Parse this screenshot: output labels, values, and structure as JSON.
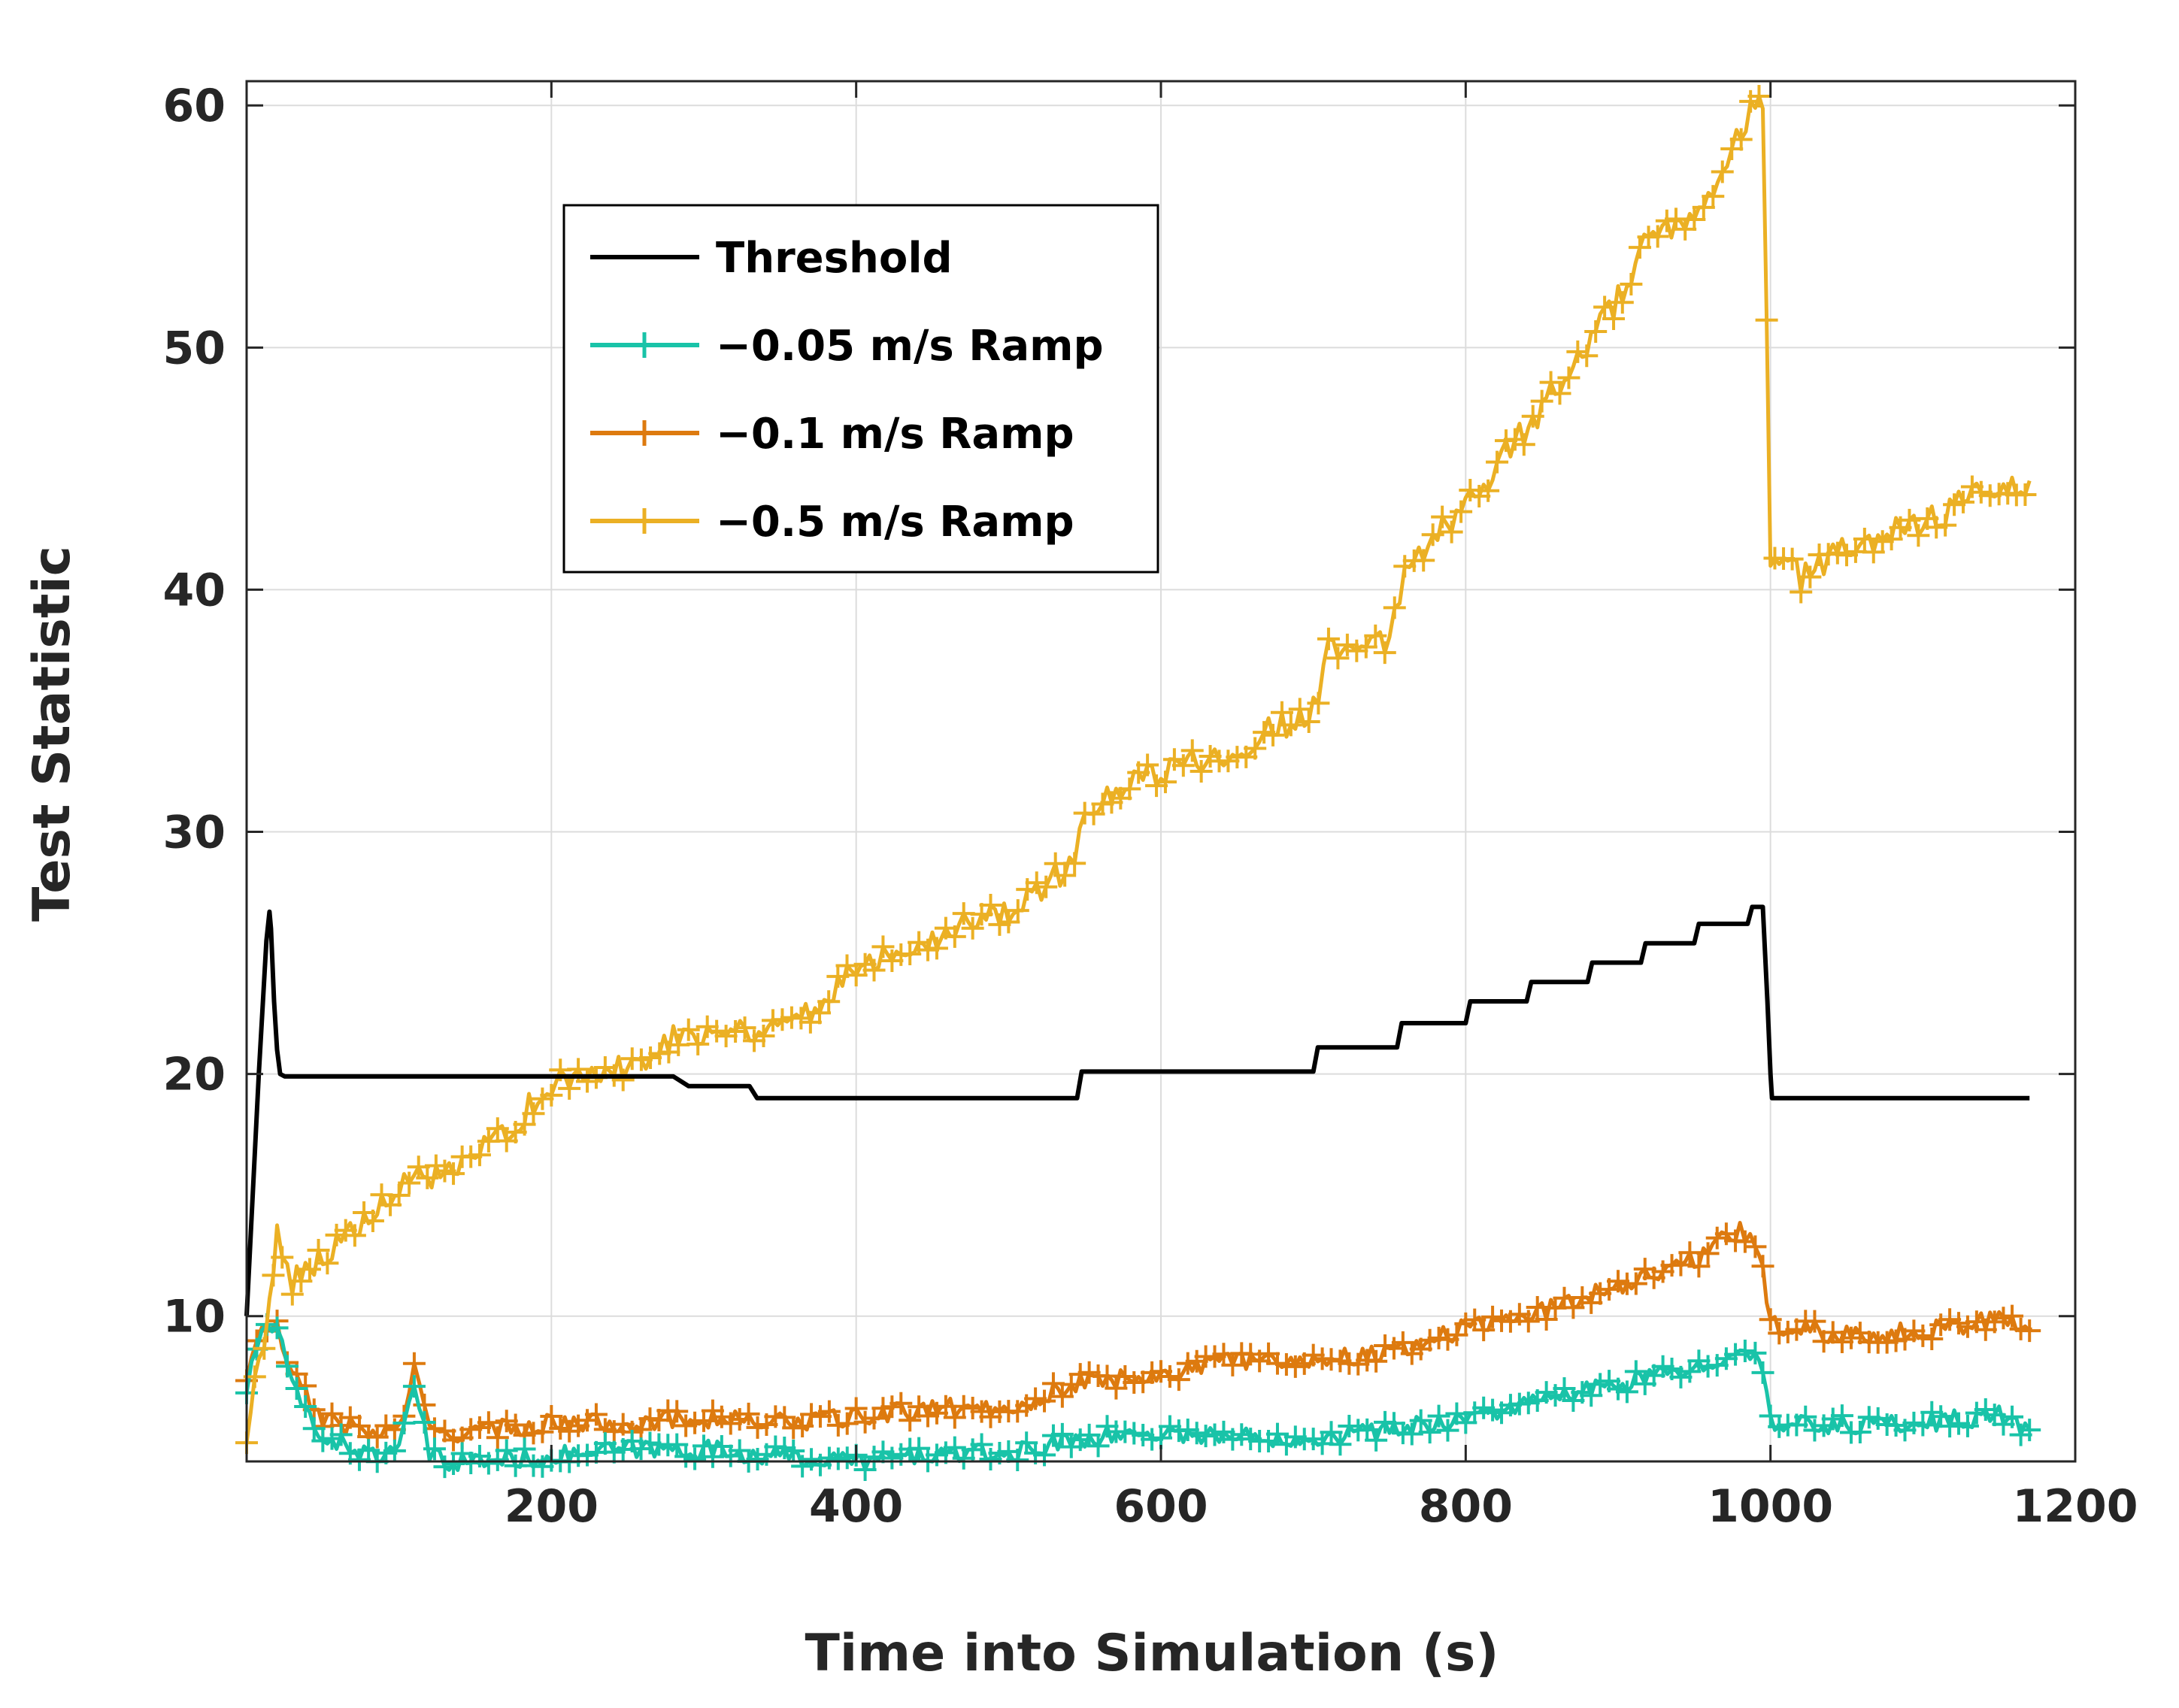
{
  "chart_data": {
    "type": "line",
    "title": "",
    "xlabel": "Time into Simulation (s)",
    "ylabel": "Test Statistic",
    "xlim": [
      0,
      1200
    ],
    "ylim": [
      4,
      61
    ],
    "xticks": [
      200,
      400,
      600,
      800,
      1000,
      1200
    ],
    "yticks": [
      10,
      20,
      30,
      40,
      50,
      60
    ],
    "grid": true,
    "legend_position": "upper-left-inside",
    "series": [
      {
        "name": "Threshold",
        "color": "#000000",
        "marker": "none",
        "x": [
          0,
          8,
          13,
          15,
          16,
          18,
          20,
          22,
          25,
          280,
          290,
          330,
          335,
          545,
          548,
          700,
          703,
          755,
          758,
          800,
          803,
          840,
          843,
          880,
          883,
          915,
          918,
          950,
          953,
          985,
          988,
          995,
          998,
          1000,
          1001,
          1170
        ],
        "y": [
          10,
          20,
          25.5,
          26.7,
          26,
          23,
          21,
          20,
          19.9,
          19.9,
          19.5,
          19.5,
          19,
          19,
          20.1,
          20.1,
          21.1,
          21.1,
          22.1,
          22.1,
          23,
          23,
          23.8,
          23.8,
          24.6,
          24.6,
          25.4,
          25.4,
          26.2,
          26.2,
          26.9,
          26.9,
          23,
          20,
          19,
          19
        ]
      },
      {
        "name": "−0.05 m/s Ramp",
        "color": "#19c3a8",
        "marker": "+",
        "x": [
          0,
          10,
          20,
          30,
          50,
          80,
          100,
          110,
          120,
          130,
          150,
          200,
          250,
          300,
          350,
          400,
          450,
          500,
          550,
          600,
          650,
          700,
          750,
          800,
          850,
          900,
          950,
          980,
          990,
          995,
          1000,
          1020,
          1050,
          1100,
          1150,
          1170
        ],
        "y": [
          7,
          9.5,
          9.5,
          7,
          5,
          4.3,
          4.3,
          7.3,
          4.2,
          4,
          4,
          4.2,
          4.5,
          4.5,
          4.2,
          4,
          4.3,
          4.3,
          5,
          5.2,
          5,
          5,
          5.3,
          5.8,
          6.5,
          7.2,
          7.8,
          8.8,
          8.5,
          7.5,
          5.5,
          5.5,
          5.5,
          5.6,
          5.9,
          5.3
        ]
      },
      {
        "name": "−0.1 m/s Ramp",
        "color": "#dd7a0f",
        "marker": "+",
        "x": [
          0,
          10,
          20,
          30,
          50,
          80,
          100,
          110,
          120,
          130,
          150,
          200,
          250,
          300,
          350,
          400,
          450,
          500,
          550,
          600,
          650,
          700,
          750,
          800,
          850,
          900,
          950,
          980,
          990,
          995,
          1000,
          1020,
          1050,
          1100,
          1150,
          1170
        ],
        "y": [
          7.5,
          9.5,
          9.5,
          7.5,
          5.8,
          5.2,
          5.3,
          7.8,
          5.2,
          5.2,
          5.2,
          5.6,
          5.6,
          5.8,
          5.6,
          5.8,
          6.2,
          6.2,
          7.3,
          7.6,
          8.2,
          8.2,
          8.5,
          9.5,
          10.2,
          11.3,
          12.3,
          13.6,
          13.2,
          12,
          9.6,
          9.5,
          9.2,
          9.4,
          9.9,
          9.4
        ]
      },
      {
        "name": "−0.5 m/s Ramp",
        "color": "#ebb024",
        "marker": "+",
        "x": [
          0,
          8,
          15,
          20,
          30,
          50,
          80,
          100,
          110,
          130,
          150,
          200,
          250,
          280,
          290,
          330,
          370,
          400,
          450,
          500,
          540,
          550,
          600,
          650,
          700,
          710,
          750,
          760,
          800,
          850,
          900,
          920,
          950,
          990,
          995,
          1000,
          1020,
          1050,
          1100,
          1150,
          1170
        ],
        "y": [
          5,
          8,
          10.5,
          13.5,
          11.5,
          12.5,
          14,
          15,
          16,
          15.6,
          16.5,
          19.5,
          20.3,
          21.5,
          21.8,
          21.8,
          22.5,
          24.5,
          25.7,
          26.8,
          28.5,
          30.8,
          32.5,
          33.5,
          35,
          37.5,
          37.8,
          41,
          43.5,
          47.5,
          52,
          54.5,
          55,
          60,
          60.3,
          41.5,
          40.5,
          41.7,
          42.8,
          44.3,
          44.5
        ]
      }
    ]
  }
}
